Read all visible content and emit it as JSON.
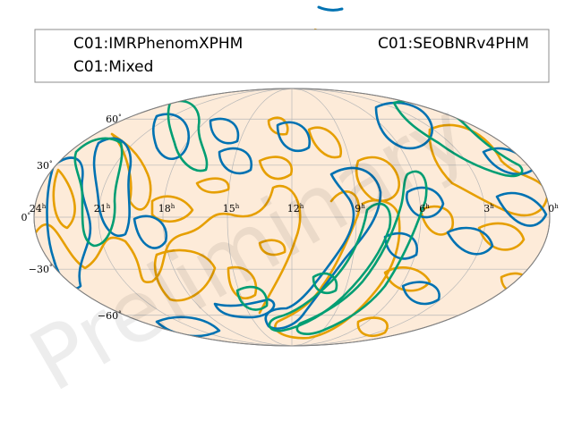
{
  "chart_data": {
    "type": "sky-map-contour",
    "projection": "mollweide",
    "background_color": "#fdebd9",
    "grid": true,
    "ra_ticks": [
      {
        "label": "24",
        "sup": "h",
        "ra": 24
      },
      {
        "label": "21",
        "sup": "h",
        "ra": 21
      },
      {
        "label": "18",
        "sup": "h",
        "ra": 18
      },
      {
        "label": "15",
        "sup": "h",
        "ra": 15
      },
      {
        "label": "12",
        "sup": "h",
        "ra": 12
      },
      {
        "label": "9",
        "sup": "h",
        "ra": 9
      },
      {
        "label": "6",
        "sup": "h",
        "ra": 6
      },
      {
        "label": "3",
        "sup": "h",
        "ra": 3
      },
      {
        "label": "0",
        "sup": "h",
        "ra": 0
      }
    ],
    "dec_ticks": [
      {
        "label": "60",
        "sup": "°",
        "dec": 60
      },
      {
        "label": "30",
        "sup": "°",
        "dec": 30
      },
      {
        "label": "0",
        "sup": "°",
        "dec": 0
      },
      {
        "label": "−30",
        "sup": "°",
        "dec": -30
      },
      {
        "label": "−60",
        "sup": "°",
        "dec": -60
      }
    ],
    "legend": {
      "placement": "top"
    },
    "series": [
      {
        "name": "C01:IMRPhenomXPHM",
        "color": "#0072b2"
      },
      {
        "name": "C01:SEOBNRv4PHM",
        "color": "#e69f00"
      },
      {
        "name": "C01:Mixed",
        "color": "#009e73"
      }
    ],
    "watermark": "Preliminary"
  }
}
